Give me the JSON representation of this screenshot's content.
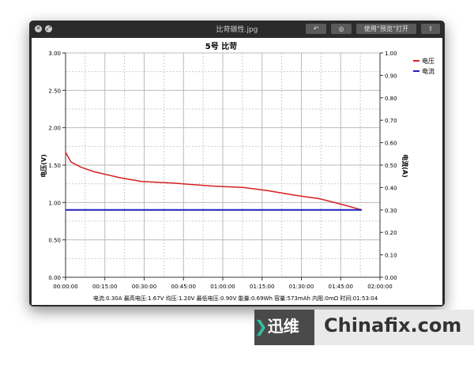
{
  "window": {
    "title": "比苛碳性.jpg",
    "open_with_label": "使用“预览”打开",
    "buttons": [
      "rotate-icon",
      "markup-icon",
      "share-icon"
    ]
  },
  "chart_data": {
    "type": "line",
    "title": "5号 比苛",
    "xlabel": "",
    "ylabel": "电压(V)",
    "y2label": "电流(A)",
    "xlim": [
      "00:00:00",
      "02:00:00"
    ],
    "x_ticks": [
      "00:00:00",
      "00:15:00",
      "00:30:00",
      "00:45:00",
      "01:00:00",
      "01:15:00",
      "01:30:00",
      "01:45:00",
      "02:00:00"
    ],
    "ylim": [
      0,
      3
    ],
    "y_ticks": [
      "0.00",
      "0.50",
      "1.00",
      "1.50",
      "2.00",
      "2.50",
      "3.00"
    ],
    "y2lim": [
      0,
      1
    ],
    "y2_ticks": [
      "0.00",
      "0.10",
      "0.20",
      "0.30",
      "0.40",
      "0.50",
      "0.60",
      "0.70",
      "0.80",
      "0.90",
      "1.00"
    ],
    "grid": true,
    "legend": "top-right",
    "series": [
      {
        "name": "电压",
        "axis": "left",
        "color": "#d42020",
        "x": [
          "00:00:00",
          "00:02:06",
          "00:06:00",
          "00:11:00",
          "00:21:00",
          "00:29:00",
          "00:41:00",
          "00:56:00",
          "01:08:00",
          "01:17:00",
          "01:27:00",
          "01:37:00",
          "01:47:00",
          "01:53:04"
        ],
        "y": [
          1.67,
          1.54,
          1.47,
          1.41,
          1.33,
          1.28,
          1.26,
          1.22,
          1.2,
          1.16,
          1.1,
          1.05,
          0.96,
          0.9
        ]
      },
      {
        "name": "电流",
        "axis": "right",
        "color": "#2020c0",
        "x": [
          "00:00:00",
          "01:53:04"
        ],
        "y": [
          0.3,
          0.3
        ]
      }
    ],
    "stats": "电流:0.30A 最高电压:1.67V 均压:1.20V 最低电压:0.90V 能量:0.69Wh 容量:573mAh 内阻:0mΩ 时间:01:53:04"
  },
  "watermark": {
    "brand_cn": "迅维网",
    "brand_en": "Chinafix.com"
  }
}
